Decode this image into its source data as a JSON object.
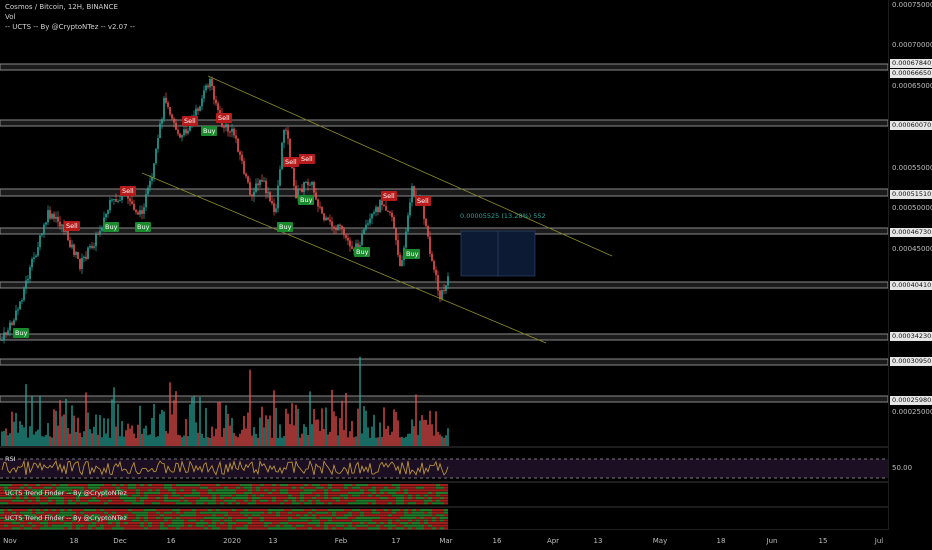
{
  "header": {
    "symbol_line": "Cosmos / Bitcoin, 12H, BINANCE",
    "vol_label": "Vol",
    "indicator_line": "-- UCTS -- By @CryptoNTez -- v2.07 --"
  },
  "price_scale": {
    "ticks": [
      "0.00075000",
      "0.00070000",
      "0.00065000",
      "0.00055000",
      "0.00050000",
      "0.00045000",
      "0.00025000"
    ],
    "labels": [
      "0.00067840",
      "0.00066650",
      "0.00060070",
      "0.00051510",
      "0.00046730",
      "0.00040410",
      "0.00034230",
      "0.00030950",
      "0.00025980"
    ],
    "rsi_tick": "50.00"
  },
  "time_axis": [
    "Nov",
    "18",
    "Dec",
    "16",
    "2020",
    "13",
    "Feb",
    "17",
    "Mar",
    "16",
    "Apr",
    "13",
    "May",
    "18",
    "Jun",
    "15",
    "Jul"
  ],
  "signals": [
    {
      "type": "sell",
      "label": "Sell"
    },
    {
      "type": "sell",
      "label": "Sell"
    },
    {
      "type": "sell",
      "label": "Sell"
    },
    {
      "type": "sell",
      "label": "Sell"
    },
    {
      "type": "sell",
      "label": "Sell"
    },
    {
      "type": "sell",
      "label": "Sell"
    },
    {
      "type": "sell",
      "label": "Sell"
    },
    {
      "type": "sell",
      "label": "Sell"
    },
    {
      "type": "buy",
      "label": "Buy"
    },
    {
      "type": "buy",
      "label": "Buy"
    },
    {
      "type": "buy",
      "label": "Buy"
    },
    {
      "type": "buy",
      "label": "Buy"
    },
    {
      "type": "buy",
      "label": "Buy"
    },
    {
      "type": "buy",
      "label": "Buy"
    },
    {
      "type": "buy",
      "label": "Buy"
    },
    {
      "type": "buy",
      "label": "Buy"
    }
  ],
  "measure_label": "0.00005525 (13.28%) 552",
  "rsi": {
    "label": "RSI"
  },
  "trend_finders": [
    {
      "label": "UCTS Trend Finder -- By @CryptoNTez"
    },
    {
      "label": "UCTS Trend Finder -- By @CryptoNTez"
    }
  ],
  "colors": {
    "up": "#26a69a",
    "down": "#ef5350",
    "sell": "#b71c1c",
    "buy": "#1b8a2f",
    "channel": "#8c8c2a",
    "rsi": "#c8a135"
  }
}
